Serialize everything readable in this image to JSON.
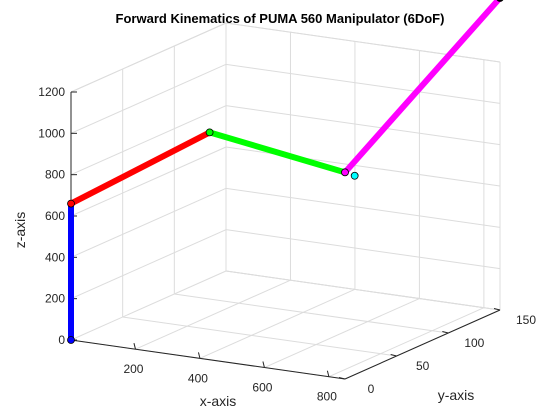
{
  "chart_data": {
    "type": "line",
    "title": "Forward Kinematics of PUMA 560 Manipulator (6DoF)",
    "xlabel": "x-axis",
    "ylabel": "y-axis",
    "zlabel": "z-axis",
    "xlim": [
      0,
      850
    ],
    "ylim": [
      0,
      150
    ],
    "zlim": [
      0,
      1200
    ],
    "x_ticks": [
      200,
      400,
      600,
      800
    ],
    "y_ticks": [
      0,
      50,
      100,
      150
    ],
    "z_ticks": [
      0,
      200,
      400,
      600,
      800,
      1000,
      1200
    ],
    "grid": true,
    "series": [
      {
        "color": "#0000ff",
        "points": [
          [
            0,
            0,
            0
          ],
          [
            0,
            0,
            660
          ]
        ]
      },
      {
        "color": "#ff0000",
        "points": [
          [
            0,
            0,
            660
          ],
          [
            430,
            0,
            1100
          ]
        ]
      },
      {
        "color": "#00ff00",
        "points": [
          [
            430,
            0,
            1100
          ],
          [
            850,
            0,
            1000
          ]
        ]
      },
      {
        "color": "#ff00ff",
        "points": [
          [
            850,
            0,
            1000
          ],
          [
            850,
            150,
            1510
          ]
        ]
      },
      {
        "color": "#000000",
        "points": [
          [
            850,
            150,
            1510
          ],
          [
            850,
            150,
            1530
          ]
        ]
      }
    ],
    "joints": [
      {
        "point": [
          0,
          0,
          0
        ],
        "color": "#0000ff"
      },
      {
        "point": [
          0,
          0,
          660
        ],
        "color": "#ff0000"
      },
      {
        "point": [
          430,
          0,
          1100
        ],
        "color": "#00ff00"
      },
      {
        "point": [
          850,
          0,
          1000
        ],
        "color": "#ff00ff"
      },
      {
        "point": [
          880,
          0,
          990
        ],
        "color": "#00ffff"
      },
      {
        "point": [
          850,
          150,
          1510
        ],
        "color": "#000000"
      },
      {
        "point": [
          850,
          150,
          1530
        ],
        "color": "#000000"
      }
    ]
  }
}
